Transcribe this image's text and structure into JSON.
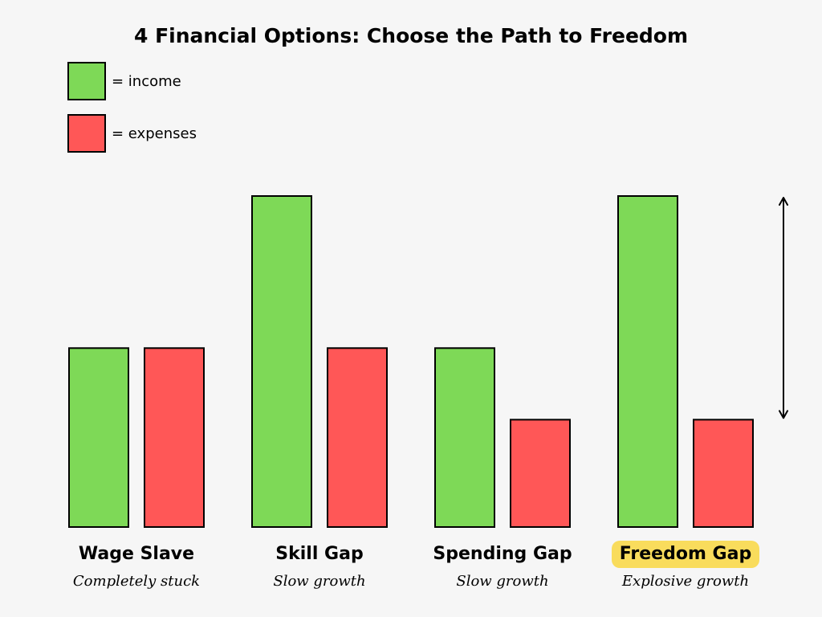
{
  "colors": {
    "income": "#7ed957",
    "expenses": "#ff5757",
    "highlight": "#f9dc5c",
    "background": "#f6f6f6"
  },
  "legend": {
    "income_label": "= income",
    "expenses_label": "= expenses"
  },
  "chart_data": {
    "type": "bar",
    "title": "4 Financial Options: Choose the Path to Freedom",
    "categories": [
      "Wage Slave",
      "Skill Gap",
      "Spending Gap",
      "Freedom Gap"
    ],
    "subtitles": [
      "Completely stuck",
      "Slow growth",
      "Slow growth",
      "Explosive growth"
    ],
    "highlighted_category": "Freedom Gap",
    "series": [
      {
        "name": "income",
        "values": [
          1.0,
          1.85,
          1.0,
          1.85
        ]
      },
      {
        "name": "expenses",
        "values": [
          1.0,
          1.0,
          0.6,
          0.6
        ]
      }
    ],
    "ylim": [
      0,
      2
    ],
    "annotation": {
      "type": "double-arrow",
      "category": "Freedom Gap",
      "from_value": 0.6,
      "to_value": 1.85
    },
    "grid": false,
    "legend_position": "top-left"
  }
}
